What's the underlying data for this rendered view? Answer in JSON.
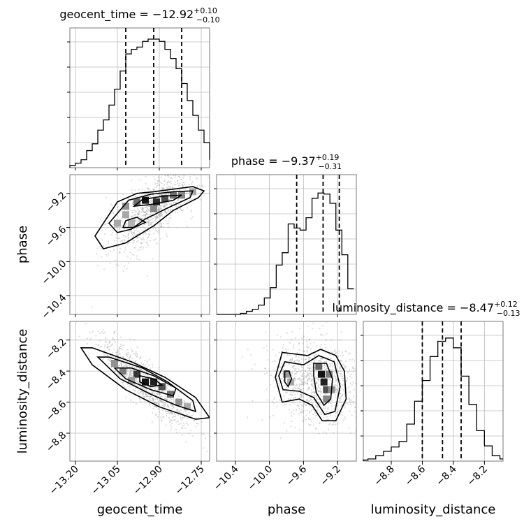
{
  "chart_data": {
    "type": "corner",
    "parameters": [
      "geocent_time",
      "phase",
      "luminosity_distance"
    ],
    "ranges": {
      "geocent_time": [
        -13.22,
        -12.72
      ],
      "phase": [
        -10.62,
        -8.98
      ],
      "luminosity_distance": [
        -8.98,
        -8.08
      ]
    },
    "ticks": {
      "geocent_time": [
        -13.2,
        -13.05,
        -12.9,
        -12.75
      ],
      "phase": [
        -10.4,
        -10.0,
        -9.6,
        -9.2
      ],
      "luminosity_distance": [
        -8.8,
        -8.6,
        -8.4,
        -8.2
      ]
    },
    "tick_labels": {
      "geocent_time": [
        "−13.20",
        "−13.05",
        "−12.90",
        "−12.75"
      ],
      "phase": [
        "−10.4",
        "−10.0",
        "−9.6",
        "−9.2"
      ],
      "luminosity_distance": [
        "−8.8",
        "−8.6",
        "−8.4",
        "−8.2"
      ]
    },
    "axis_labels": {
      "geocent_time": "geocent_time",
      "phase": "phase",
      "luminosity_distance": "luminosity_distance"
    },
    "titles": [
      {
        "param": "geocent_time",
        "prefix": "geocent_time = −12.92",
        "plus": "+0.10",
        "minus": "−0.10"
      },
      {
        "param": "phase",
        "prefix": "phase = −9.37",
        "plus": "+0.19",
        "minus": "−0.31"
      },
      {
        "param": "luminosity_distance",
        "prefix": "luminosity_distance = −8.47",
        "plus": "+0.12",
        "minus": "−0.13"
      }
    ],
    "quantiles": {
      "geocent_time": [
        -13.02,
        -12.92,
        -12.82
      ],
      "phase": [
        -9.68,
        -9.37,
        -9.18
      ],
      "luminosity_distance": [
        -8.6,
        -8.47,
        -8.35
      ]
    },
    "histograms": {
      "geocent_time": {
        "edges": [
          -13.22,
          -13.2,
          -13.18,
          -13.16,
          -13.14,
          -13.12,
          -13.1,
          -13.08,
          -13.06,
          -13.04,
          -13.02,
          -13.0,
          -12.98,
          -12.96,
          -12.94,
          -12.92,
          -12.9,
          -12.88,
          -12.86,
          -12.84,
          -12.82,
          -12.8,
          -12.78,
          -12.76,
          -12.74,
          -12.72
        ],
        "counts": [
          2,
          4,
          7,
          15,
          21,
          33,
          42,
          55,
          69,
          85,
          100,
          104,
          106,
          111,
          113,
          113,
          111,
          104,
          96,
          87,
          74,
          59,
          46,
          33,
          22,
          7
        ]
      },
      "phase": {
        "edges": [
          -10.62,
          -10.55,
          -10.48,
          -10.41,
          -10.34,
          -10.27,
          -10.2,
          -10.13,
          -10.06,
          -9.99,
          -9.92,
          -9.85,
          -9.78,
          -9.71,
          -9.64,
          -9.57,
          -9.5,
          -9.43,
          -9.36,
          -9.29,
          -9.22,
          -9.15,
          -9.08,
          -9.01
        ],
        "counts": [
          0,
          0,
          0,
          0,
          1,
          3,
          5,
          9,
          16,
          26,
          48,
          60,
          88,
          84,
          82,
          94,
          113,
          118,
          117,
          108,
          82,
          58,
          25
        ],
        "scale_max": 125
      },
      "luminosity_distance": {
        "edges": [
          -9.0,
          -8.95,
          -8.9,
          -8.85,
          -8.8,
          -8.75,
          -8.7,
          -8.65,
          -8.6,
          -8.55,
          -8.5,
          -8.45,
          -8.4,
          -8.35,
          -8.3,
          -8.25,
          -8.2,
          -8.15,
          -8.1,
          -8.05
        ],
        "counts": [
          1,
          2,
          5,
          9,
          13,
          18,
          34,
          55,
          74,
          96,
          110,
          113,
          104,
          78,
          52,
          28,
          14,
          5,
          2
        ],
        "scale_max": 118
      }
    },
    "scatter_panels": [
      {
        "x": "geocent_time",
        "y": "phase",
        "density_cells": [
          {
            "x": -12.95,
            "y": -9.28,
            "d": 0.95
          },
          {
            "x": -12.91,
            "y": -9.3,
            "d": 0.85
          },
          {
            "x": -12.88,
            "y": -9.26,
            "d": 0.7
          },
          {
            "x": -12.85,
            "y": -9.22,
            "d": 0.55
          },
          {
            "x": -12.82,
            "y": -9.22,
            "d": 0.45
          },
          {
            "x": -12.98,
            "y": -9.3,
            "d": 0.55
          },
          {
            "x": -13.02,
            "y": -9.35,
            "d": 0.4
          },
          {
            "x": -12.92,
            "y": -9.38,
            "d": 0.45
          },
          {
            "x": -13.02,
            "y": -9.45,
            "d": 0.3
          },
          {
            "x": -13.05,
            "y": -9.55,
            "d": 0.3
          },
          {
            "x": -13.0,
            "y": -9.55,
            "d": 0.25
          },
          {
            "x": -12.78,
            "y": -9.18,
            "d": 0.3
          }
        ],
        "contours": [
          [
            [
              -13.1,
              -9.85
            ],
            [
              -13.13,
              -9.7
            ],
            [
              -13.05,
              -9.3
            ],
            [
              -12.98,
              -9.2
            ],
            [
              -12.92,
              -9.18
            ],
            [
              -12.85,
              -9.15
            ],
            [
              -12.78,
              -9.12
            ],
            [
              -12.74,
              -9.17
            ],
            [
              -12.76,
              -9.25
            ],
            [
              -12.85,
              -9.4
            ],
            [
              -12.92,
              -9.58
            ],
            [
              -13.02,
              -9.78
            ]
          ],
          [
            [
              -13.05,
              -9.66
            ],
            [
              -13.08,
              -9.55
            ],
            [
              -13.01,
              -9.28
            ],
            [
              -12.93,
              -9.21
            ],
            [
              -12.85,
              -9.18
            ],
            [
              -12.78,
              -9.17
            ],
            [
              -12.79,
              -9.25
            ],
            [
              -12.87,
              -9.37
            ],
            [
              -12.95,
              -9.5
            ],
            [
              -13.0,
              -9.62
            ]
          ],
          [
            [
              -13.03,
              -9.6
            ],
            [
              -13.02,
              -9.52
            ],
            [
              -12.98,
              -9.48
            ],
            [
              -12.95,
              -9.54
            ],
            [
              -12.99,
              -9.6
            ]
          ],
          [
            [
              -12.99,
              -9.35
            ],
            [
              -12.96,
              -9.27
            ],
            [
              -12.88,
              -9.23
            ],
            [
              -12.82,
              -9.22
            ],
            [
              -12.85,
              -9.28
            ],
            [
              -12.93,
              -9.33
            ]
          ]
        ]
      },
      {
        "x": "geocent_time",
        "y": "luminosity_distance",
        "density_cells": [
          {
            "x": -12.95,
            "y": -8.47,
            "d": 0.95
          },
          {
            "x": -12.92,
            "y": -8.47,
            "d": 0.9
          },
          {
            "x": -12.98,
            "y": -8.42,
            "d": 0.8
          },
          {
            "x": -12.89,
            "y": -8.5,
            "d": 0.7
          },
          {
            "x": -12.86,
            "y": -8.55,
            "d": 0.55
          },
          {
            "x": -13.03,
            "y": -8.4,
            "d": 0.5
          },
          {
            "x": -13.06,
            "y": -8.35,
            "d": 0.4
          },
          {
            "x": -12.83,
            "y": -8.6,
            "d": 0.4
          },
          {
            "x": -12.8,
            "y": -8.63,
            "d": 0.3
          },
          {
            "x": -13.0,
            "y": -8.46,
            "d": 0.35
          }
        ],
        "contours": [
          [
            [
              -13.18,
              -8.25
            ],
            [
              -13.14,
              -8.25
            ],
            [
              -13.0,
              -8.34
            ],
            [
              -12.88,
              -8.44
            ],
            [
              -12.77,
              -8.57
            ],
            [
              -12.72,
              -8.7
            ],
            [
              -12.77,
              -8.71
            ],
            [
              -12.9,
              -8.63
            ],
            [
              -13.02,
              -8.52
            ],
            [
              -13.14,
              -8.36
            ]
          ],
          [
            [
              -13.12,
              -8.31
            ],
            [
              -13.08,
              -8.31
            ],
            [
              -12.96,
              -8.38
            ],
            [
              -12.87,
              -8.47
            ],
            [
              -12.78,
              -8.59
            ],
            [
              -12.77,
              -8.66
            ],
            [
              -12.84,
              -8.62
            ],
            [
              -12.93,
              -8.55
            ],
            [
              -13.04,
              -8.45
            ]
          ],
          [
            [
              -13.06,
              -8.38
            ],
            [
              -13.0,
              -8.38
            ],
            [
              -12.92,
              -8.43
            ],
            [
              -12.84,
              -8.51
            ],
            [
              -12.85,
              -8.56
            ],
            [
              -12.93,
              -8.52
            ],
            [
              -13.02,
              -8.45
            ]
          ],
          [
            [
              -12.97,
              -8.43
            ],
            [
              -12.92,
              -8.45
            ],
            [
              -12.89,
              -8.49
            ],
            [
              -12.93,
              -8.5
            ],
            [
              -12.97,
              -8.47
            ]
          ]
        ]
      },
      {
        "x": "phase",
        "y": "luminosity_distance",
        "density_cells": [
          {
            "x": -9.39,
            "y": -8.42,
            "d": 0.95
          },
          {
            "x": -9.36,
            "y": -8.47,
            "d": 0.9
          },
          {
            "x": -9.33,
            "y": -8.52,
            "d": 0.7
          },
          {
            "x": -9.42,
            "y": -8.37,
            "d": 0.6
          },
          {
            "x": -9.3,
            "y": -8.42,
            "d": 0.5
          },
          {
            "x": -9.33,
            "y": -8.58,
            "d": 0.45
          },
          {
            "x": -9.27,
            "y": -8.52,
            "d": 0.4
          },
          {
            "x": -9.8,
            "y": -8.42,
            "d": 0.35
          },
          {
            "x": -9.75,
            "y": -8.47,
            "d": 0.3
          }
        ],
        "contours": [
          [
            [
              -9.85,
              -8.28
            ],
            [
              -9.55,
              -8.3
            ],
            [
              -9.4,
              -8.26
            ],
            [
              -9.22,
              -8.3
            ],
            [
              -9.12,
              -8.4
            ],
            [
              -9.1,
              -8.58
            ],
            [
              -9.22,
              -8.72
            ],
            [
              -9.38,
              -8.72
            ],
            [
              -9.5,
              -8.62
            ],
            [
              -9.65,
              -8.58
            ],
            [
              -9.85,
              -8.6
            ],
            [
              -9.93,
              -8.44
            ]
          ],
          [
            [
              -9.82,
              -8.34
            ],
            [
              -9.6,
              -8.36
            ],
            [
              -9.42,
              -8.3
            ],
            [
              -9.24,
              -8.34
            ],
            [
              -9.17,
              -8.5
            ],
            [
              -9.23,
              -8.66
            ],
            [
              -9.35,
              -8.68
            ],
            [
              -9.48,
              -8.57
            ],
            [
              -9.65,
              -8.53
            ],
            [
              -9.84,
              -8.52
            ],
            [
              -9.89,
              -8.43
            ]
          ],
          [
            [
              -9.48,
              -8.35
            ],
            [
              -9.33,
              -8.35
            ],
            [
              -9.26,
              -8.45
            ],
            [
              -9.28,
              -8.58
            ],
            [
              -9.36,
              -8.62
            ],
            [
              -9.45,
              -8.54
            ],
            [
              -9.48,
              -8.43
            ]
          ],
          [
            [
              -9.82,
              -8.4
            ],
            [
              -9.77,
              -8.4
            ],
            [
              -9.74,
              -8.45
            ],
            [
              -9.78,
              -8.5
            ],
            [
              -9.82,
              -8.47
            ]
          ]
        ]
      }
    ]
  }
}
